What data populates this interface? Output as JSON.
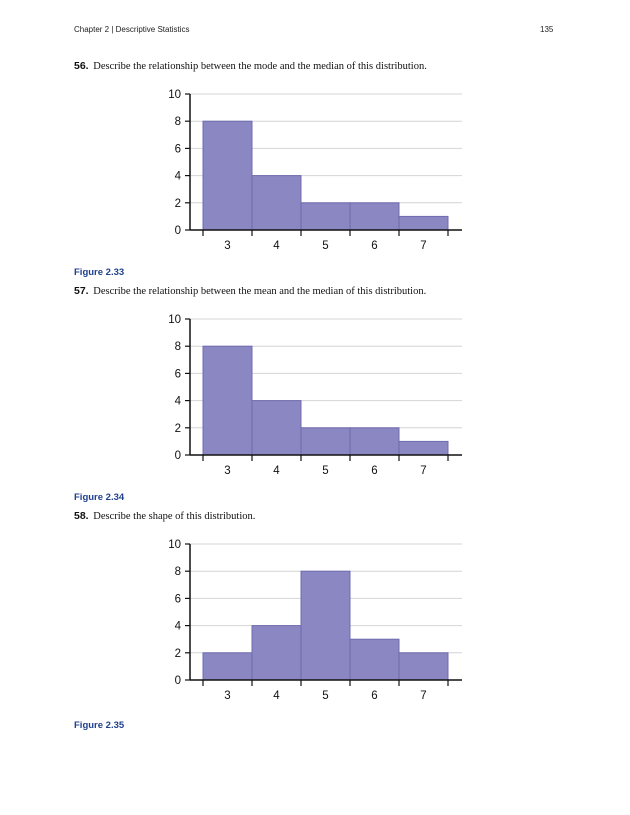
{
  "header": {
    "chapter": "Chapter 2 | Descriptive Statistics",
    "page_number": "135"
  },
  "questions": [
    {
      "number": "56.",
      "text": "Describe the relationship between the mode and the median of this distribution."
    },
    {
      "number": "57.",
      "text": "Describe the relationship between the mean and the median of this distribution."
    },
    {
      "number": "58.",
      "text": "Describe the shape of this distribution."
    }
  ],
  "captions": [
    "Figure 2.33",
    "Figure 2.34",
    "Figure 2.35"
  ],
  "chart_data": [
    {
      "type": "bar",
      "categories": [
        "3",
        "4",
        "5",
        "6",
        "7"
      ],
      "values": [
        8,
        4,
        2,
        2,
        1
      ],
      "ylim": [
        0,
        10
      ],
      "yticks": [
        "0",
        "2",
        "4",
        "6",
        "8",
        "10"
      ],
      "title": "",
      "xlabel": "",
      "ylabel": "",
      "grid": true,
      "bar_color": "#8b87c2"
    },
    {
      "type": "bar",
      "categories": [
        "3",
        "4",
        "5",
        "6",
        "7"
      ],
      "values": [
        8,
        4,
        2,
        2,
        1
      ],
      "ylim": [
        0,
        10
      ],
      "yticks": [
        "0",
        "2",
        "4",
        "6",
        "8",
        "10"
      ],
      "title": "",
      "xlabel": "",
      "ylabel": "",
      "grid": true,
      "bar_color": "#8b87c2"
    },
    {
      "type": "bar",
      "categories": [
        "3",
        "4",
        "5",
        "6",
        "7"
      ],
      "values": [
        2,
        4,
        8,
        3,
        2
      ],
      "ylim": [
        0,
        10
      ],
      "yticks": [
        "0",
        "2",
        "4",
        "6",
        "8",
        "10"
      ],
      "title": "",
      "xlabel": "",
      "ylabel": "",
      "grid": true,
      "bar_color": "#8b87c2"
    }
  ]
}
